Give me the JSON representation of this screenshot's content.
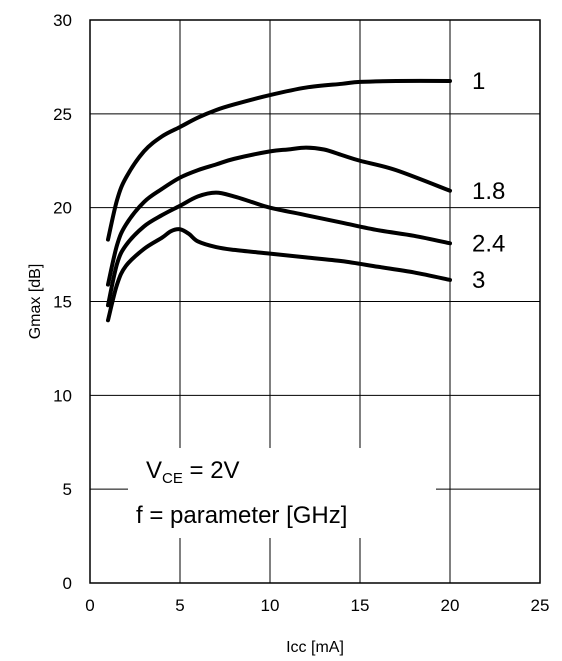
{
  "chart_data": {
    "type": "line",
    "xlabel": "Icc [mA]",
    "ylabel": "Gmax [dB]",
    "xlim": [
      0,
      25
    ],
    "ylim": [
      0,
      30
    ],
    "xticks": [
      0,
      5,
      10,
      15,
      20,
      25
    ],
    "yticks": [
      0,
      5,
      10,
      15,
      20,
      25,
      30
    ],
    "xtick_labels": [
      "0",
      "5",
      "10",
      "15",
      "20",
      "25"
    ],
    "ytick_labels": [
      "0",
      "5",
      "10",
      "15",
      "20",
      "25",
      "30"
    ],
    "grid": true,
    "series": [
      {
        "name": "1",
        "x": [
          1,
          1.5,
          2,
          3,
          4,
          5,
          6,
          7,
          8,
          10,
          12,
          14,
          15,
          17,
          20
        ],
        "y": [
          18.3,
          20.4,
          21.6,
          23.0,
          23.8,
          24.3,
          24.8,
          25.2,
          25.5,
          26.0,
          26.4,
          26.6,
          26.7,
          26.75,
          26.75
        ]
      },
      {
        "name": "1.8",
        "x": [
          1,
          1.5,
          2,
          3,
          4,
          5,
          6,
          7,
          8,
          10,
          11,
          12,
          13,
          14,
          15,
          17,
          20
        ],
        "y": [
          15.9,
          18.0,
          19.1,
          20.3,
          21.0,
          21.6,
          22.0,
          22.3,
          22.6,
          23.0,
          23.1,
          23.2,
          23.1,
          22.8,
          22.5,
          22.0,
          20.9
        ]
      },
      {
        "name": "2.4",
        "x": [
          1,
          1.5,
          2,
          3,
          4,
          5,
          6,
          7,
          8,
          9,
          10,
          12,
          14,
          16,
          18,
          20
        ],
        "y": [
          14.8,
          17.0,
          18.0,
          19.0,
          19.6,
          20.1,
          20.6,
          20.8,
          20.6,
          20.3,
          20.0,
          19.6,
          19.2,
          18.8,
          18.5,
          18.1
        ]
      },
      {
        "name": "3",
        "x": [
          1,
          1.5,
          2,
          3,
          4,
          4.5,
          5,
          5.5,
          6,
          7,
          8,
          10,
          12,
          14,
          16,
          18,
          20
        ],
        "y": [
          14.0,
          15.9,
          16.9,
          17.8,
          18.4,
          18.75,
          18.85,
          18.6,
          18.2,
          17.9,
          17.75,
          17.55,
          17.35,
          17.15,
          16.85,
          16.55,
          16.15
        ]
      }
    ],
    "annotations": {
      "line1_main": "V",
      "line1_sub": "CE",
      "line1_rest": " = 2V",
      "line2": "f = parameter [GHz]"
    }
  }
}
